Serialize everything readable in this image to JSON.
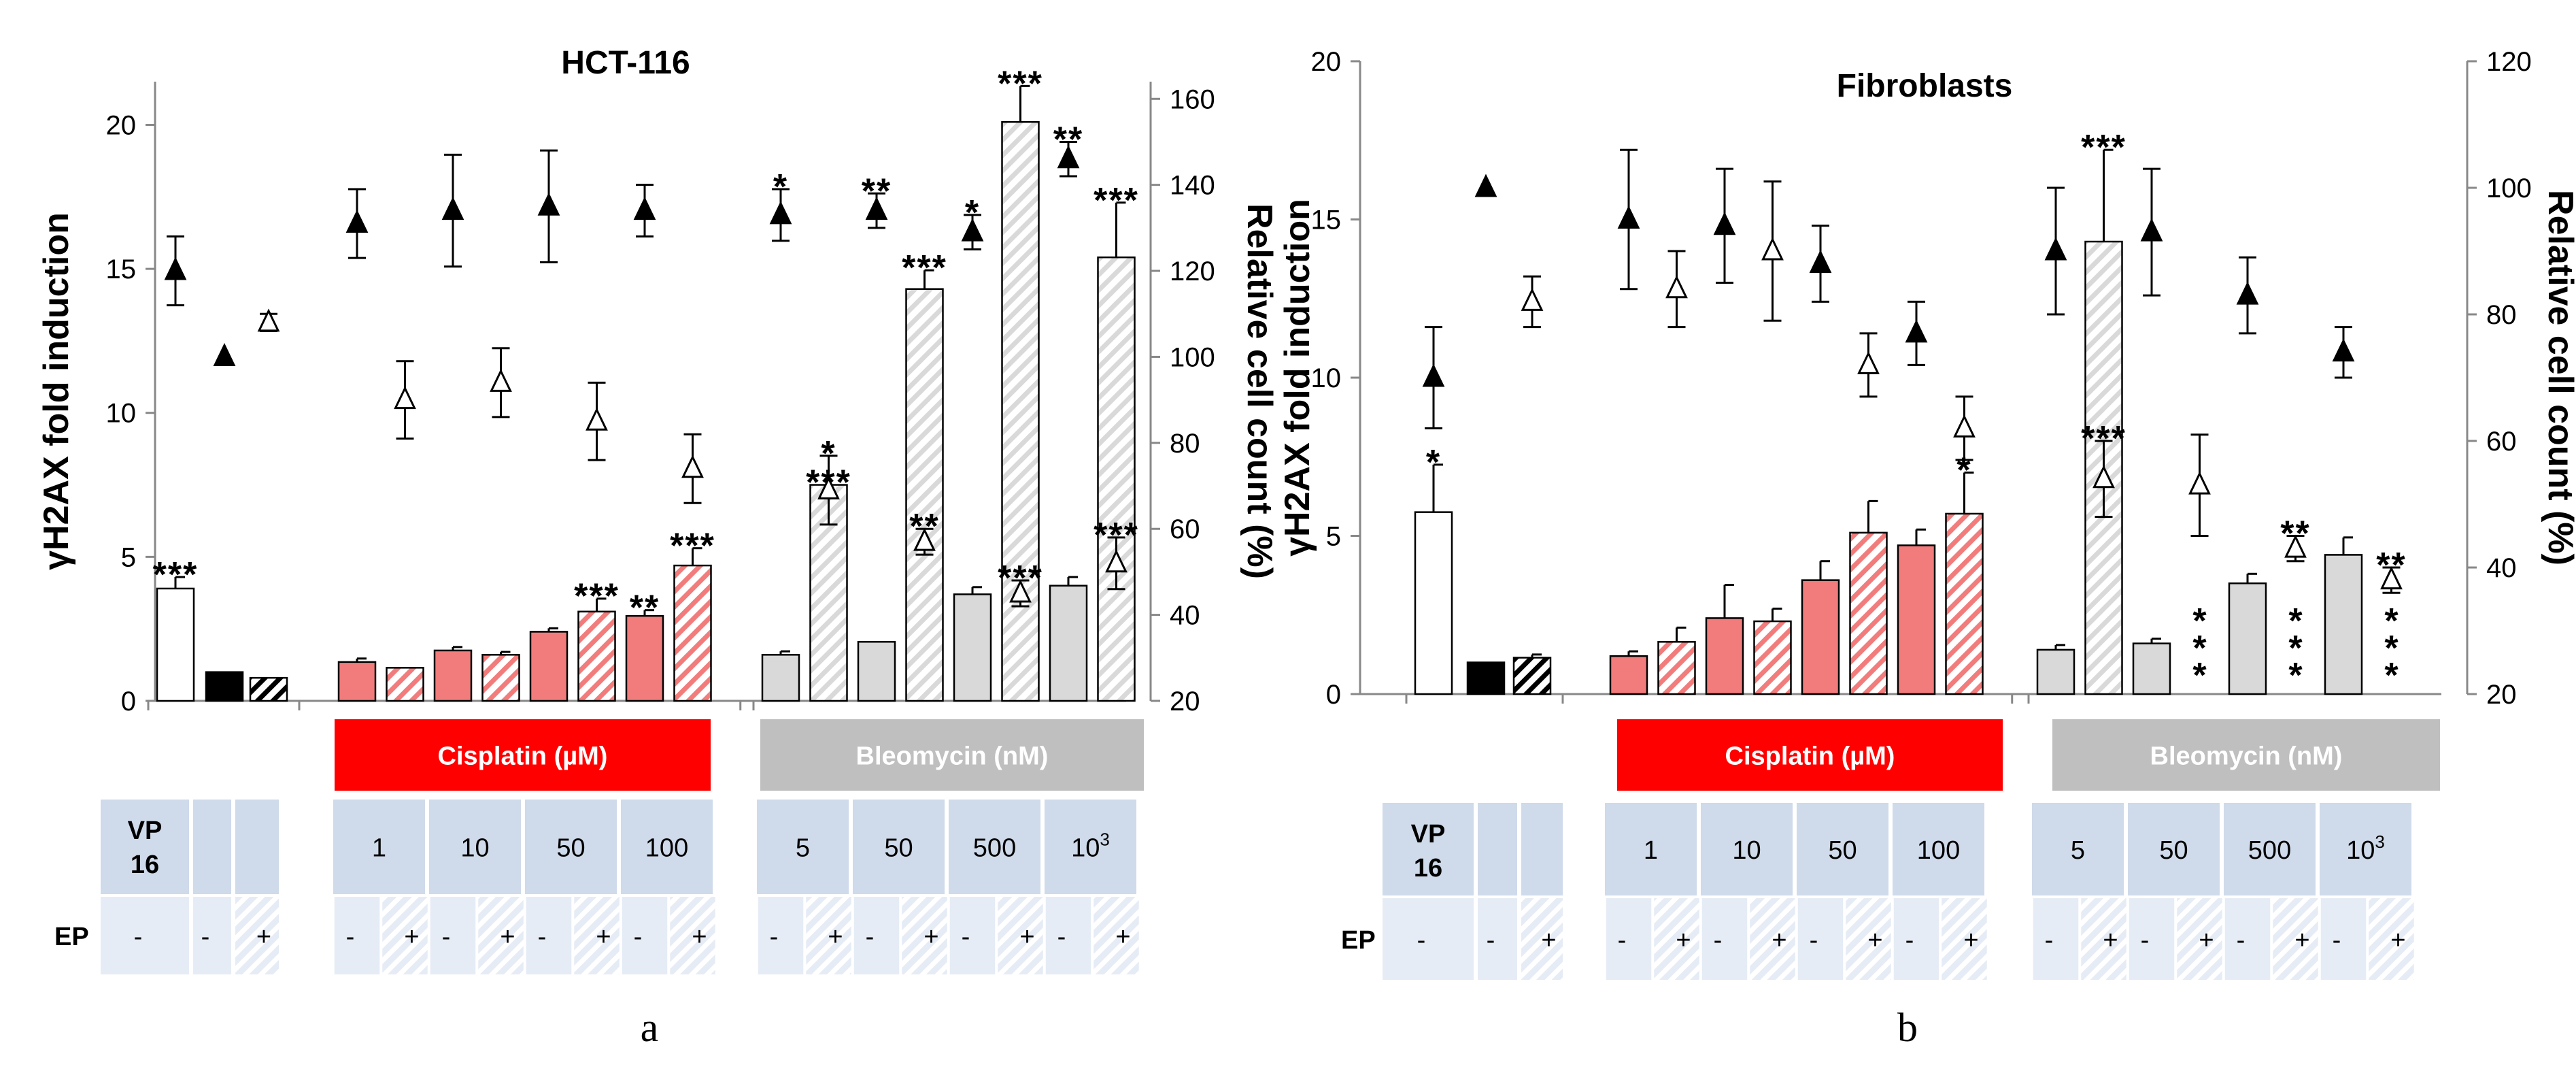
{
  "colors": {
    "cisplatin": "#f27c7c",
    "cisplatin_banner": "#ff0000",
    "bleomycin": "#d9d9d9",
    "bleomycin_banner": "#bfbfbf",
    "table_cell": "#cfdaea",
    "table_cell_light": "#e6ecf5",
    "control_black": "#000000",
    "white": "#ffffff"
  },
  "chart_data": [
    {
      "type": "bar",
      "panel_label": "a",
      "title": "HCT-116",
      "ylabel": "γH2AX fold induction",
      "y2label": "Relative cell count (%)",
      "ylim": [
        0,
        21.5
      ],
      "yticks": [
        "0",
        "5",
        "10",
        "15",
        "20"
      ],
      "y2lim": [
        20,
        164
      ],
      "y2ticks": [
        "20",
        "40",
        "60",
        "80",
        "100",
        "120",
        "140",
        "160"
      ],
      "treatment_banners": [
        "Cisplatin (µM)",
        "Bleomycin (nM)"
      ],
      "table": {
        "control_header": "VP\n16",
        "dose_headers": [
          "1",
          "10",
          "50",
          "100",
          "5",
          "50",
          "500",
          "10³"
        ],
        "row_label": "EP",
        "ep_signs": [
          "-",
          "-",
          "+",
          "-",
          "+",
          "-",
          "+",
          "-",
          "+",
          "-",
          "+",
          "-",
          "+",
          "-",
          "+",
          "-",
          "+",
          "-",
          "+"
        ]
      },
      "bars": [
        {
          "group": "control",
          "fill": "white",
          "pattern": false,
          "value": 3.9,
          "err": 0.4,
          "sig": "***"
        },
        {
          "group": "control",
          "fill": "black",
          "pattern": false,
          "value": 1.0,
          "err": 0,
          "sig": ""
        },
        {
          "group": "control",
          "fill": "black",
          "pattern": true,
          "value": 0.8,
          "err": 0,
          "sig": ""
        },
        {
          "group": "cisplatin",
          "fill": "cisplatin",
          "pattern": false,
          "value": 1.35,
          "err": 0.12,
          "sig": ""
        },
        {
          "group": "cisplatin",
          "fill": "cisplatin",
          "pattern": true,
          "value": 1.15,
          "err": 0,
          "sig": ""
        },
        {
          "group": "cisplatin",
          "fill": "cisplatin",
          "pattern": false,
          "value": 1.75,
          "err": 0.12,
          "sig": ""
        },
        {
          "group": "cisplatin",
          "fill": "cisplatin",
          "pattern": true,
          "value": 1.6,
          "err": 0.1,
          "sig": ""
        },
        {
          "group": "cisplatin",
          "fill": "cisplatin",
          "pattern": false,
          "value": 2.4,
          "err": 0.12,
          "sig": ""
        },
        {
          "group": "cisplatin",
          "fill": "cisplatin",
          "pattern": true,
          "value": 3.1,
          "err": 0.45,
          "sig": "***"
        },
        {
          "group": "cisplatin",
          "fill": "cisplatin",
          "pattern": false,
          "value": 2.95,
          "err": 0.2,
          "sig": "**"
        },
        {
          "group": "cisplatin",
          "fill": "cisplatin",
          "pattern": true,
          "value": 4.7,
          "err": 0.6,
          "sig": "***"
        },
        {
          "group": "bleomycin",
          "fill": "bleomycin",
          "pattern": false,
          "value": 1.6,
          "err": 0.12,
          "sig": ""
        },
        {
          "group": "bleomycin",
          "fill": "bleomycin",
          "pattern": true,
          "value": 7.5,
          "err": 0,
          "sig": "***"
        },
        {
          "group": "bleomycin",
          "fill": "bleomycin",
          "pattern": false,
          "value": 2.05,
          "err": 0,
          "sig": ""
        },
        {
          "group": "bleomycin",
          "fill": "bleomycin",
          "pattern": true,
          "value": 14.3,
          "err": 0.65,
          "sig": "***"
        },
        {
          "group": "bleomycin",
          "fill": "bleomycin",
          "pattern": false,
          "value": 3.7,
          "err": 0.25,
          "sig": ""
        },
        {
          "group": "bleomycin",
          "fill": "bleomycin",
          "pattern": true,
          "value": 20.1,
          "err": 1.25,
          "sig": "***"
        },
        {
          "group": "bleomycin",
          "fill": "bleomycin",
          "pattern": false,
          "value": 4.0,
          "err": 0.3,
          "sig": ""
        },
        {
          "group": "bleomycin",
          "fill": "bleomycin",
          "pattern": true,
          "value": 15.4,
          "err": 1.9,
          "sig": "***"
        }
      ],
      "series": [
        {
          "marker": "filled-triangle",
          "values": [
            120,
            100,
            null,
            131,
            null,
            134,
            null,
            135,
            null,
            134,
            null,
            133,
            null,
            134,
            null,
            129,
            null,
            146,
            null
          ],
          "errors": [
            8,
            0,
            null,
            8,
            null,
            13,
            null,
            13,
            null,
            6,
            null,
            6,
            null,
            4,
            null,
            4,
            null,
            4,
            null
          ],
          "sig": [
            "",
            "",
            "",
            "",
            "",
            "",
            "",
            "",
            "",
            "",
            "",
            "*",
            "",
            "**",
            "",
            "*",
            "",
            "**",
            ""
          ]
        },
        {
          "marker": "open-triangle",
          "values": [
            null,
            null,
            108,
            null,
            90,
            null,
            94,
            null,
            85,
            null,
            74,
            null,
            69,
            null,
            57,
            null,
            45,
            null,
            52
          ],
          "errors": [
            null,
            null,
            2,
            null,
            9,
            null,
            8,
            null,
            9,
            null,
            8,
            null,
            8,
            null,
            3,
            null,
            3,
            null,
            6
          ],
          "sig": [
            "",
            "",
            "",
            "",
            "",
            "",
            "",
            "",
            "",
            "",
            "",
            "",
            "*",
            "",
            "**",
            "",
            "***",
            "",
            "***"
          ]
        }
      ]
    },
    {
      "type": "bar",
      "panel_label": "b",
      "title": "Fibroblasts",
      "ylabel": "γH2AX fold induction",
      "y2label": "Relative cell count (%)",
      "ylim": [
        0,
        20
      ],
      "yticks": [
        "0",
        "5",
        "10",
        "15",
        "20"
      ],
      "y2lim": [
        20,
        120
      ],
      "y2ticks": [
        "20",
        "40",
        "60",
        "80",
        "100",
        "120"
      ],
      "treatment_banners": [
        "Cisplatin (µM)",
        "Bleomycin (nM)"
      ],
      "table": {
        "control_header": "VP\n16",
        "dose_headers": [
          "1",
          "10",
          "50",
          "100",
          "5",
          "50",
          "500",
          "10³"
        ],
        "row_label": "EP",
        "ep_signs": [
          "-",
          "-",
          "+",
          "-",
          "+",
          "-",
          "+",
          "-",
          "+",
          "-",
          "+",
          "-",
          "+",
          "-",
          "+",
          "-",
          "+",
          "-",
          "+"
        ]
      },
      "bars": [
        {
          "group": "control",
          "fill": "white",
          "pattern": false,
          "value": 5.75,
          "err": 1.5,
          "sig": "*"
        },
        {
          "group": "control",
          "fill": "black",
          "pattern": false,
          "value": 1.0,
          "err": 0,
          "sig": ""
        },
        {
          "group": "control",
          "fill": "black",
          "pattern": true,
          "value": 1.15,
          "err": 0.1,
          "sig": ""
        },
        {
          "group": "cisplatin",
          "fill": "cisplatin",
          "pattern": false,
          "value": 1.2,
          "err": 0.15,
          "sig": ""
        },
        {
          "group": "cisplatin",
          "fill": "cisplatin",
          "pattern": true,
          "value": 1.65,
          "err": 0.45,
          "sig": ""
        },
        {
          "group": "cisplatin",
          "fill": "cisplatin",
          "pattern": false,
          "value": 2.4,
          "err": 1.05,
          "sig": ""
        },
        {
          "group": "cisplatin",
          "fill": "cisplatin",
          "pattern": true,
          "value": 2.3,
          "err": 0.4,
          "sig": ""
        },
        {
          "group": "cisplatin",
          "fill": "cisplatin",
          "pattern": false,
          "value": 3.6,
          "err": 0.6,
          "sig": ""
        },
        {
          "group": "cisplatin",
          "fill": "cisplatin",
          "pattern": true,
          "value": 5.1,
          "err": 1.0,
          "sig": ""
        },
        {
          "group": "cisplatin",
          "fill": "cisplatin",
          "pattern": false,
          "value": 4.7,
          "err": 0.5,
          "sig": ""
        },
        {
          "group": "cisplatin",
          "fill": "cisplatin",
          "pattern": true,
          "value": 5.7,
          "err": 1.3,
          "sig": "*"
        },
        {
          "group": "bleomycin",
          "fill": "bleomycin",
          "pattern": false,
          "value": 1.4,
          "err": 0.15,
          "sig": ""
        },
        {
          "group": "bleomycin",
          "fill": "bleomycin",
          "pattern": true,
          "value": 14.3,
          "err": 2.9,
          "sig": "***"
        },
        {
          "group": "bleomycin",
          "fill": "bleomycin",
          "pattern": false,
          "value": 1.6,
          "err": 0.15,
          "sig": ""
        },
        {
          "group": "bleomycin",
          "fill": "bleomycin",
          "pattern": true,
          "value": 0,
          "err": 0,
          "sig": "***"
        },
        {
          "group": "bleomycin",
          "fill": "bleomycin",
          "pattern": false,
          "value": 3.5,
          "err": 0.3,
          "sig": ""
        },
        {
          "group": "bleomycin",
          "fill": "bleomycin",
          "pattern": true,
          "value": 0,
          "err": 0,
          "sig": "***"
        },
        {
          "group": "bleomycin",
          "fill": "bleomycin",
          "pattern": false,
          "value": 4.4,
          "err": 0.55,
          "sig": ""
        },
        {
          "group": "bleomycin",
          "fill": "bleomycin",
          "pattern": true,
          "value": 0,
          "err": 0,
          "sig": "***"
        }
      ],
      "series": [
        {
          "marker": "filled-triangle",
          "values": [
            70,
            100,
            null,
            95,
            null,
            94,
            null,
            88,
            null,
            77,
            null,
            90,
            null,
            93,
            null,
            83,
            null,
            74,
            null
          ],
          "errors": [
            8,
            0,
            null,
            11,
            null,
            9,
            null,
            6,
            null,
            5,
            null,
            10,
            null,
            10,
            null,
            6,
            null,
            4,
            null
          ],
          "sig": [
            "",
            "",
            "",
            "",
            "",
            "",
            "",
            "",
            "",
            "",
            "",
            "",
            "",
            "",
            "",
            "",
            "",
            "",
            ""
          ]
        },
        {
          "marker": "open-triangle",
          "values": [
            null,
            null,
            82,
            null,
            84,
            null,
            90,
            null,
            72,
            null,
            62,
            null,
            54,
            null,
            53,
            null,
            43,
            null,
            38
          ],
          "errors": [
            null,
            null,
            4,
            null,
            6,
            null,
            11,
            null,
            5,
            null,
            5,
            null,
            6,
            null,
            8,
            null,
            2,
            null,
            2
          ],
          "sig": [
            "",
            "",
            "",
            "",
            "",
            "",
            "",
            "",
            "",
            "",
            "",
            "",
            "***",
            "",
            "",
            "",
            "**",
            "",
            "**"
          ]
        }
      ]
    }
  ]
}
